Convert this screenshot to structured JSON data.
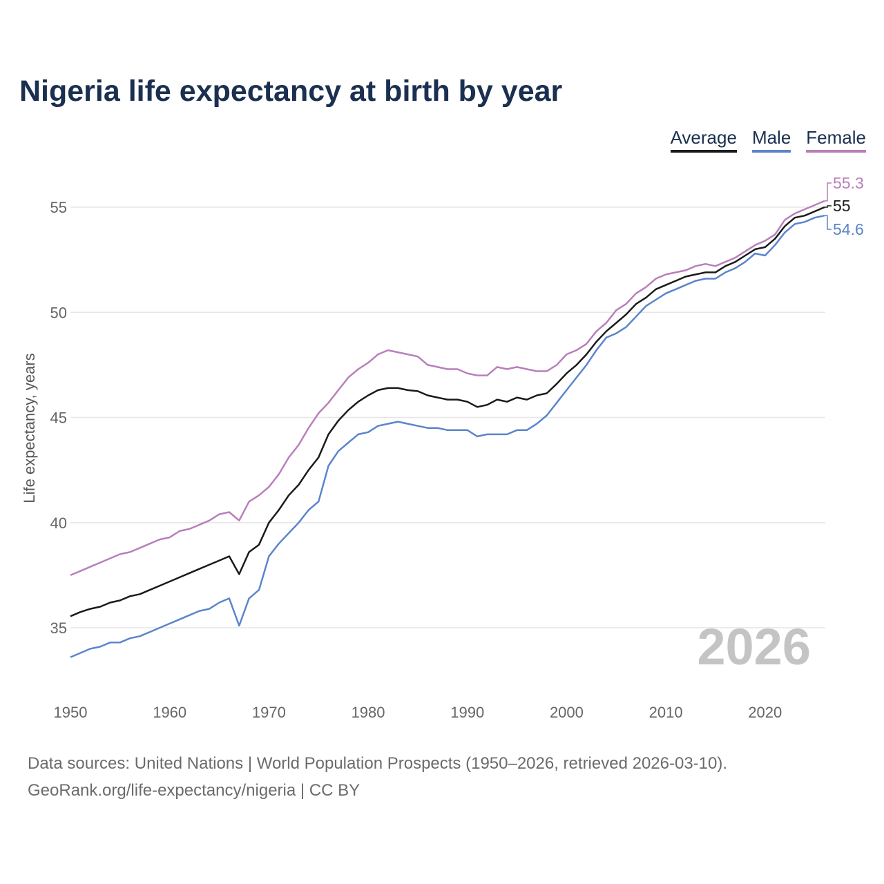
{
  "chart_data": {
    "type": "line",
    "title": "Nigeria life expectancy at birth by year",
    "xlabel": "",
    "ylabel": "Life expectancy, years",
    "xlim": [
      1950,
      2026
    ],
    "ylim": [
      33,
      56.5
    ],
    "xticks": [
      1950,
      1960,
      1970,
      1980,
      1990,
      2000,
      2010,
      2020
    ],
    "yticks": [
      35,
      40,
      45,
      50,
      55
    ],
    "grid": true,
    "legend_placement": "top-right",
    "watermark": "2026",
    "x_start": 1950,
    "series": [
      {
        "name": "Average",
        "color": "#1a1a1a",
        "end_label": "55",
        "values": [
          35.55,
          35.75,
          35.9,
          36.0,
          36.2,
          36.3,
          36.5,
          36.6,
          36.8,
          37.0,
          37.2,
          37.4,
          37.6,
          37.8,
          38.0,
          38.2,
          38.4,
          37.55,
          38.6,
          38.95,
          40.0,
          40.6,
          41.3,
          41.8,
          42.5,
          43.1,
          44.2,
          44.85,
          45.35,
          45.75,
          46.05,
          46.3,
          46.4,
          46.4,
          46.3,
          46.25,
          46.05,
          45.95,
          45.85,
          45.85,
          45.75,
          45.5,
          45.6,
          45.85,
          45.75,
          45.95,
          45.85,
          46.05,
          46.15,
          46.6,
          47.1,
          47.5,
          48.0,
          48.6,
          49.1,
          49.5,
          49.9,
          50.4,
          50.7,
          51.1,
          51.3,
          51.5,
          51.7,
          51.8,
          51.9,
          51.9,
          52.2,
          52.4,
          52.7,
          53.0,
          53.1,
          53.5,
          54.1,
          54.5,
          54.6,
          54.8,
          55.0
        ]
      },
      {
        "name": "Male",
        "color": "#5b84cc",
        "end_label": "54.6",
        "values": [
          33.6,
          33.8,
          34.0,
          34.1,
          34.3,
          34.3,
          34.5,
          34.6,
          34.8,
          35.0,
          35.2,
          35.4,
          35.6,
          35.8,
          35.9,
          36.2,
          36.4,
          35.1,
          36.4,
          36.8,
          38.4,
          39.0,
          39.5,
          40.0,
          40.6,
          41.0,
          42.7,
          43.4,
          43.8,
          44.2,
          44.3,
          44.6,
          44.7,
          44.8,
          44.7,
          44.6,
          44.5,
          44.5,
          44.4,
          44.4,
          44.4,
          44.1,
          44.2,
          44.2,
          44.2,
          44.4,
          44.4,
          44.7,
          45.1,
          45.7,
          46.3,
          46.9,
          47.5,
          48.2,
          48.8,
          49.0,
          49.3,
          49.8,
          50.3,
          50.6,
          50.9,
          51.1,
          51.3,
          51.5,
          51.6,
          51.6,
          51.9,
          52.1,
          52.4,
          52.8,
          52.7,
          53.2,
          53.8,
          54.2,
          54.3,
          54.5,
          54.6
        ]
      },
      {
        "name": "Female",
        "color": "#b97fba",
        "end_label": "55.3",
        "values": [
          37.5,
          37.7,
          37.9,
          38.1,
          38.3,
          38.5,
          38.6,
          38.8,
          39.0,
          39.2,
          39.3,
          39.6,
          39.7,
          39.9,
          40.1,
          40.4,
          40.5,
          40.1,
          41.0,
          41.3,
          41.7,
          42.3,
          43.1,
          43.7,
          44.5,
          45.2,
          45.7,
          46.3,
          46.9,
          47.3,
          47.6,
          48.0,
          48.2,
          48.1,
          48.0,
          47.9,
          47.5,
          47.4,
          47.3,
          47.3,
          47.1,
          47.0,
          47.0,
          47.4,
          47.3,
          47.4,
          47.3,
          47.2,
          47.2,
          47.5,
          48.0,
          48.2,
          48.5,
          49.1,
          49.5,
          50.1,
          50.4,
          50.9,
          51.2,
          51.6,
          51.8,
          51.9,
          52.0,
          52.2,
          52.3,
          52.2,
          52.4,
          52.6,
          52.9,
          53.2,
          53.4,
          53.7,
          54.4,
          54.7,
          54.9,
          55.1,
          55.3
        ]
      }
    ]
  },
  "footer": {
    "line1": "Data sources: United Nations | World Population Prospects (1950–2026, retrieved 2026-03-10).",
    "line2": "GeoRank.org/life-expectancy/nigeria | CC BY"
  }
}
